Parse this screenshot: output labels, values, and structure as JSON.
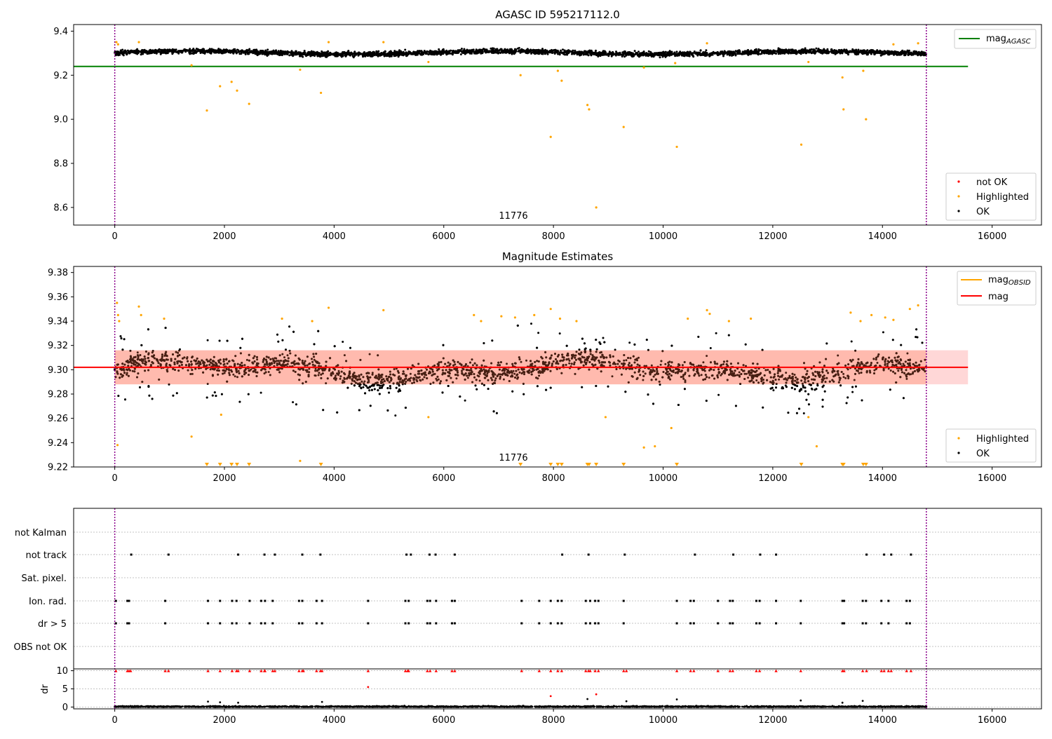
{
  "chart_data": [
    {
      "type": "scatter",
      "title": "AGASC ID 595217112.0",
      "xlim": [
        -750,
        16900
      ],
      "ylim": [
        8.52,
        9.43
      ],
      "xticks": [
        0,
        2000,
        4000,
        6000,
        8000,
        10000,
        12000,
        14000,
        16000
      ],
      "yticks": [
        8.6,
        8.8,
        9.0,
        9.2,
        9.4
      ],
      "yticklabels": [
        "8.6",
        "8.8",
        "9.0",
        "9.2",
        "9.4"
      ],
      "vlines": [
        0,
        14800
      ],
      "annotation": {
        "text": "11776",
        "x": 7400
      },
      "hline": {
        "name": "mag",
        "subscript": "AGASC",
        "y": 9.24,
        "x_range": [
          -750,
          15560
        ],
        "color": "#008000"
      },
      "ok_band": {
        "center": 9.302,
        "spread": 0.045,
        "x_range": [
          0,
          14800
        ]
      },
      "highlighted": [
        [
          30,
          9.35
        ],
        [
          60,
          9.34
        ],
        [
          440,
          9.35
        ],
        [
          1400,
          9.245
        ],
        [
          1680,
          9.04
        ],
        [
          1920,
          9.15
        ],
        [
          2130,
          9.17
        ],
        [
          2230,
          9.13
        ],
        [
          2450,
          9.07
        ],
        [
          3380,
          9.225
        ],
        [
          3760,
          9.12
        ],
        [
          3900,
          9.35
        ],
        [
          4900,
          9.35
        ],
        [
          5720,
          9.26
        ],
        [
          7400,
          9.2
        ],
        [
          7950,
          8.92
        ],
        [
          8080,
          9.22
        ],
        [
          8150,
          9.175
        ],
        [
          8620,
          9.065
        ],
        [
          8650,
          9.045
        ],
        [
          8780,
          8.6
        ],
        [
          9280,
          8.965
        ],
        [
          9650,
          9.235
        ],
        [
          10220,
          9.255
        ],
        [
          10250,
          8.875
        ],
        [
          10800,
          9.345
        ],
        [
          12520,
          8.885
        ],
        [
          12650,
          9.26
        ],
        [
          13270,
          9.19
        ],
        [
          13290,
          9.045
        ],
        [
          13650,
          9.22
        ],
        [
          13700,
          9.0
        ],
        [
          14200,
          9.34
        ],
        [
          14650,
          9.345
        ]
      ],
      "legend": {
        "entries": [
          "not OK",
          "Highlighted",
          "OK"
        ],
        "colors": [
          "#ff0000",
          "#ffa500",
          "#000000"
        ],
        "placement": "lower right"
      }
    },
    {
      "type": "scatter",
      "title": "Magnitude Estimates",
      "xlim": [
        -750,
        16900
      ],
      "ylim": [
        9.22,
        9.385
      ],
      "xticks": [
        0,
        2000,
        4000,
        6000,
        8000,
        10000,
        12000,
        14000,
        16000
      ],
      "yticks": [
        9.22,
        9.24,
        9.26,
        9.28,
        9.3,
        9.32,
        9.34,
        9.36,
        9.38
      ],
      "yticklabels": [
        "9.22",
        "9.24",
        "9.26",
        "9.28",
        "9.30",
        "9.32",
        "9.34",
        "9.36",
        "9.38"
      ],
      "vlines": [
        0,
        14800
      ],
      "annotation": {
        "text": "11776",
        "x": 7400
      },
      "mag_line": {
        "name": "mag",
        "y": 9.302,
        "x_range": [
          -750,
          15560
        ],
        "color": "#ff0000"
      },
      "mag_band": {
        "low": 9.288,
        "high": 9.316,
        "color": "#ffb6b6"
      },
      "ok_band": {
        "center": 9.3,
        "spread": 0.018
      },
      "highlighted": [
        [
          40,
          9.355
        ],
        [
          60,
          9.345
        ],
        [
          80,
          9.34
        ],
        [
          50,
          9.238
        ],
        [
          440,
          9.352
        ],
        [
          480,
          9.345
        ],
        [
          900,
          9.342
        ],
        [
          1400,
          9.245
        ],
        [
          1940,
          9.263
        ],
        [
          3050,
          9.342
        ],
        [
          3380,
          9.225
        ],
        [
          3600,
          9.34
        ],
        [
          3900,
          9.351
        ],
        [
          4900,
          9.349
        ],
        [
          5720,
          9.261
        ],
        [
          6550,
          9.345
        ],
        [
          6680,
          9.34
        ],
        [
          7050,
          9.344
        ],
        [
          7300,
          9.343
        ],
        [
          7650,
          9.345
        ],
        [
          7950,
          9.35
        ],
        [
          8120,
          9.342
        ],
        [
          8420,
          9.34
        ],
        [
          8950,
          9.261
        ],
        [
          9650,
          9.236
        ],
        [
          9850,
          9.237
        ],
        [
          10150,
          9.252
        ],
        [
          10450,
          9.342
        ],
        [
          10800,
          9.349
        ],
        [
          10850,
          9.346
        ],
        [
          11200,
          9.34
        ],
        [
          11600,
          9.342
        ],
        [
          12650,
          9.261
        ],
        [
          12800,
          9.237
        ],
        [
          13420,
          9.347
        ],
        [
          13600,
          9.34
        ],
        [
          13800,
          9.345
        ],
        [
          14050,
          9.343
        ],
        [
          14200,
          9.341
        ],
        [
          14500,
          9.35
        ],
        [
          14650,
          9.353
        ]
      ],
      "clipped_low": [
        1680,
        1920,
        2130,
        2230,
        2450,
        3760,
        7400,
        7950,
        8080,
        8150,
        8620,
        8650,
        8780,
        9280,
        10250,
        12520,
        13270,
        13290,
        13650,
        13700
      ],
      "legend_lines": {
        "entries": [
          {
            "name": "mag",
            "subscript": "OBSID",
            "color": "#ffa500"
          },
          {
            "name": "mag",
            "subscript": "",
            "color": "#ff0000"
          }
        ],
        "placement": "upper right"
      },
      "legend_points": {
        "entries": [
          "Highlighted",
          "OK"
        ],
        "colors": [
          "#ffa500",
          "#000000"
        ],
        "placement": "lower right"
      }
    },
    {
      "type": "scatter",
      "title": "",
      "xlim": [
        -750,
        16900
      ],
      "vlines": [
        0,
        14800
      ],
      "flag_rows": [
        "not Kalman",
        "not track",
        "Sat. pixel.",
        "Ion. rad.",
        "dr > 5",
        "OBS not OK"
      ],
      "flags": {
        "not track": [
          300,
          980,
          2250,
          2730,
          2920,
          3420,
          3750,
          5320,
          5400,
          5740,
          5850,
          6200,
          8160,
          8640,
          9300,
          10580,
          11280,
          11770,
          12060,
          13710,
          14030,
          14160,
          14520
        ],
        "Ion. rad.": [
          20,
          230,
          260,
          920,
          1700,
          1920,
          2140,
          2220,
          2460,
          2670,
          2740,
          2880,
          3360,
          3420,
          3680,
          3780,
          4620,
          5300,
          5360,
          5700,
          5750,
          5860,
          6150,
          6200,
          7420,
          7740,
          7950,
          8080,
          8150,
          8590,
          8670,
          8760,
          8820,
          9280,
          10250,
          10500,
          10560,
          11000,
          11220,
          11270,
          11700,
          11760,
          12060,
          12510,
          13270,
          13300,
          13640,
          13700,
          13980,
          14110,
          14440,
          14500
        ],
        "dr > 5": [
          20,
          230,
          260,
          920,
          1700,
          1920,
          2140,
          2220,
          2460,
          2670,
          2740,
          2880,
          3360,
          3420,
          3680,
          3780,
          4620,
          5300,
          5360,
          5700,
          5750,
          5860,
          6150,
          6200,
          7420,
          7740,
          7950,
          8080,
          8150,
          8590,
          8670,
          8760,
          8820,
          9280,
          10250,
          10500,
          10560,
          11000,
          11220,
          11270,
          11700,
          11760,
          12060,
          12510,
          13270,
          13300,
          13640,
          13700,
          13980,
          14110,
          14440,
          14500
        ]
      },
      "dr": {
        "ylabel": "dr",
        "ylim": [
          -0.5,
          10.5
        ],
        "yticks": [
          0,
          5,
          10
        ],
        "clipped_high": [
          20,
          230,
          260,
          290,
          920,
          980,
          1700,
          1920,
          2140,
          2220,
          2250,
          2460,
          2670,
          2730,
          2740,
          2880,
          2920,
          3360,
          3420,
          3440,
          3680,
          3750,
          3780,
          4620,
          5300,
          5340,
          5360,
          5700,
          5750,
          5860,
          6150,
          6200,
          7420,
          7740,
          7950,
          8080,
          8150,
          8590,
          8640,
          8670,
          8760,
          8820,
          9280,
          9330,
          10250,
          10500,
          10560,
          11000,
          11220,
          11270,
          11700,
          11760,
          12060,
          12510,
          13270,
          13300,
          13640,
          13710,
          13980,
          14030,
          14110,
          14160,
          14440,
          14520
        ],
        "outliers": [
          [
            4620,
            5.5
          ],
          [
            7950,
            3.0
          ],
          [
            8780,
            3.5
          ]
        ]
      }
    }
  ]
}
